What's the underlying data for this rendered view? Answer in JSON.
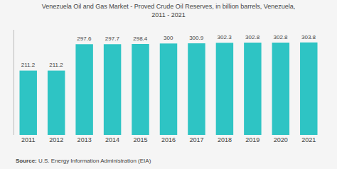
{
  "chart_data": {
    "type": "bar",
    "title": "Venezuela Oil and Gas Market - Proved Crude Oil Reserves, in billion barrels, Venezuela,",
    "subtitle": "2011 - 2021",
    "categories": [
      "2011",
      "2012",
      "2013",
      "2014",
      "2015",
      "2016",
      "2017",
      "2018",
      "2019",
      "2020",
      "2021"
    ],
    "values": [
      211.2,
      211.2,
      297.6,
      297.7,
      298.4,
      300,
      300.9,
      302.3,
      302.8,
      302.8,
      303.8
    ],
    "color": "#2EC4C4",
    "background_color": "#f5f5f5",
    "ylim": [
      0,
      345
    ],
    "yticks": [],
    "grid": false,
    "data_labels": true,
    "tick_labels": "x",
    "annotations": [
      "Source:",
      "U.S. Energy Information Administration (EIA)"
    ]
  }
}
